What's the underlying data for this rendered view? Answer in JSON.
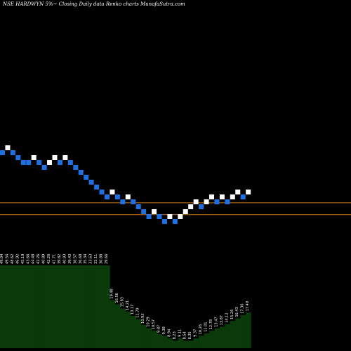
{
  "chart_data": {
    "type": "renko",
    "title": "NSE HARDWYN  5%~  Closing Daily data  Renko  charts MunafaSutra.com",
    "colors": {
      "background": "#000000",
      "up": "#ffffff",
      "down": "#1e6fe0",
      "reference_line": "#c8791f",
      "volume": "#0a3a0a"
    },
    "bricks": [
      {
        "level": 0,
        "dir": "down"
      },
      {
        "level": 1,
        "dir": "up"
      },
      {
        "level": 0,
        "dir": "down"
      },
      {
        "level": -1,
        "dir": "down"
      },
      {
        "level": -2,
        "dir": "down"
      },
      {
        "level": -2,
        "dir": "down"
      },
      {
        "level": -1,
        "dir": "up"
      },
      {
        "level": -2,
        "dir": "down"
      },
      {
        "level": -3,
        "dir": "down"
      },
      {
        "level": -2,
        "dir": "up"
      },
      {
        "level": -1,
        "dir": "up"
      },
      {
        "level": -2,
        "dir": "down"
      },
      {
        "level": -1,
        "dir": "up"
      },
      {
        "level": -2,
        "dir": "down"
      },
      {
        "level": -3,
        "dir": "down"
      },
      {
        "level": -4,
        "dir": "down"
      },
      {
        "level": -5,
        "dir": "down"
      },
      {
        "level": -6,
        "dir": "down"
      },
      {
        "level": -7,
        "dir": "down"
      },
      {
        "level": -8,
        "dir": "down"
      },
      {
        "level": -9,
        "dir": "down"
      },
      {
        "level": -8,
        "dir": "up"
      },
      {
        "level": -9,
        "dir": "down"
      },
      {
        "level": -10,
        "dir": "down"
      },
      {
        "level": -9,
        "dir": "up"
      },
      {
        "level": -10,
        "dir": "down"
      },
      {
        "level": -11,
        "dir": "down"
      },
      {
        "level": -12,
        "dir": "down"
      },
      {
        "level": -13,
        "dir": "down"
      },
      {
        "level": -12,
        "dir": "up"
      },
      {
        "level": -13,
        "dir": "down"
      },
      {
        "level": -14,
        "dir": "down"
      },
      {
        "level": -13,
        "dir": "up"
      },
      {
        "level": -14,
        "dir": "down"
      },
      {
        "level": -13,
        "dir": "up"
      },
      {
        "level": -12,
        "dir": "up"
      },
      {
        "level": -11,
        "dir": "up"
      },
      {
        "level": -10,
        "dir": "up"
      },
      {
        "level": -11,
        "dir": "down"
      },
      {
        "level": -10,
        "dir": "up"
      },
      {
        "level": -9,
        "dir": "up"
      },
      {
        "level": -10,
        "dir": "down"
      },
      {
        "level": -9,
        "dir": "up"
      },
      {
        "level": -10,
        "dir": "down"
      },
      {
        "level": -9,
        "dir": "up"
      },
      {
        "level": -8,
        "dir": "up"
      },
      {
        "level": -9,
        "dir": "down"
      },
      {
        "level": -8,
        "dir": "up"
      }
    ],
    "reference_lines": [
      -10.2,
      -12.6
    ],
    "volume": [
      {
        "value": 100,
        "label": "49.04"
      },
      {
        "value": 100,
        "label": "49.54"
      },
      {
        "value": 100,
        "label": "48.62"
      },
      {
        "value": 100,
        "label": "46.92"
      },
      {
        "value": 100,
        "label": "45.19"
      },
      {
        "value": 100,
        "label": "43.66"
      },
      {
        "value": 100,
        "label": "44.48"
      },
      {
        "value": 100,
        "label": "42.26"
      },
      {
        "value": 100,
        "label": "40.89"
      },
      {
        "value": 100,
        "label": "42.26"
      },
      {
        "value": 100,
        "label": "41.71"
      },
      {
        "value": 100,
        "label": "39.82"
      },
      {
        "value": 100,
        "label": "40.93"
      },
      {
        "value": 100,
        "label": "39.43"
      },
      {
        "value": 100,
        "label": "36.57"
      },
      {
        "value": 100,
        "label": "36.68"
      },
      {
        "value": 100,
        "label": "35.34"
      },
      {
        "value": 100,
        "label": "33.63"
      },
      {
        "value": 100,
        "label": "32.11"
      },
      {
        "value": 100,
        "label": "30.88"
      },
      {
        "value": 100,
        "label": "29.66"
      },
      {
        "value": 58,
        "label": "19.48"
      },
      {
        "value": 53,
        "label": "16.56"
      },
      {
        "value": 48,
        "label": "15.83"
      },
      {
        "value": 44,
        "label": "14.21"
      },
      {
        "value": 39,
        "label": "13.17"
      },
      {
        "value": 35,
        "label": "11.79"
      },
      {
        "value": 28,
        "label": "10.93"
      },
      {
        "value": 24,
        "label": "10.29"
      },
      {
        "value": 21,
        "label": "10.57"
      },
      {
        "value": 17,
        "label": "9.87"
      },
      {
        "value": 15,
        "label": "9.38"
      },
      {
        "value": 12,
        "label": "8.94"
      },
      {
        "value": 9,
        "label": "8.23"
      },
      {
        "value": 12,
        "label": "9.11"
      },
      {
        "value": 9,
        "label": "8.54"
      },
      {
        "value": 9,
        "label": "8.35"
      },
      {
        "value": 12,
        "label": "9.37"
      },
      {
        "value": 15,
        "label": "10.26"
      },
      {
        "value": 18,
        "label": "11.01"
      },
      {
        "value": 21,
        "label": "12.78"
      },
      {
        "value": 24,
        "label": "13.47"
      },
      {
        "value": 26,
        "label": "13.87"
      },
      {
        "value": 29,
        "label": "14.12"
      },
      {
        "value": 33,
        "label": "15.26"
      },
      {
        "value": 36,
        "label": "16.43"
      },
      {
        "value": 40,
        "label": "17.36"
      },
      {
        "value": 43,
        "label": "17.49"
      }
    ]
  }
}
